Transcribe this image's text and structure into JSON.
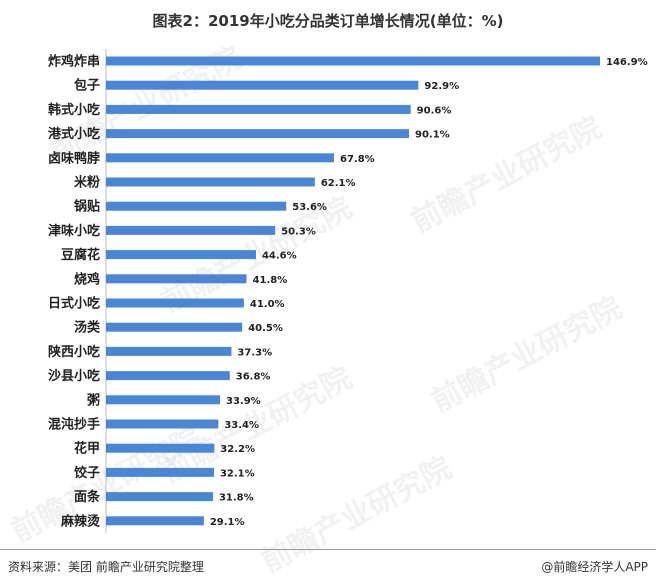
{
  "title": "图表2：2019年小吃分品类订单增长情况(单位：%)",
  "source": "资料来源：美团 前瞻产业研究院整理",
  "brand": "@前瞻经济学人APP",
  "watermark": "前瞻产业研究院",
  "colors": {
    "bar": "#4a86d8",
    "text": "#222222"
  },
  "chart_data": {
    "type": "bar",
    "orientation": "horizontal",
    "title": "图表2：2019年小吃分品类订单增长情况(单位：%)",
    "categories": [
      "炸鸡炸串",
      "包子",
      "韩式小吃",
      "港式小吃",
      "卤味鸭脖",
      "米粉",
      "锅贴",
      "津味小吃",
      "豆腐花",
      "烧鸡",
      "日式小吃",
      "汤类",
      "陕西小吃",
      "沙县小吃",
      "粥",
      "混沌抄手",
      "花甲",
      "饺子",
      "面条",
      "麻辣烫"
    ],
    "values": [
      146.9,
      92.9,
      90.6,
      90.1,
      67.8,
      62.1,
      53.6,
      50.3,
      44.6,
      41.8,
      41.0,
      40.5,
      37.3,
      36.8,
      33.9,
      33.4,
      32.2,
      32.1,
      31.8,
      29.1
    ],
    "labels": [
      "146.9%",
      "92.9%",
      "90.6%",
      "90.1%",
      "67.8%",
      "62.1%",
      "53.6%",
      "50.3%",
      "44.6%",
      "41.8%",
      "41.0%",
      "40.5%",
      "37.3%",
      "36.8%",
      "33.9%",
      "33.4%",
      "32.2%",
      "32.1%",
      "31.8%",
      "29.1%"
    ],
    "xlim": [
      0,
      146.9
    ],
    "grid": false,
    "legend": "none"
  }
}
